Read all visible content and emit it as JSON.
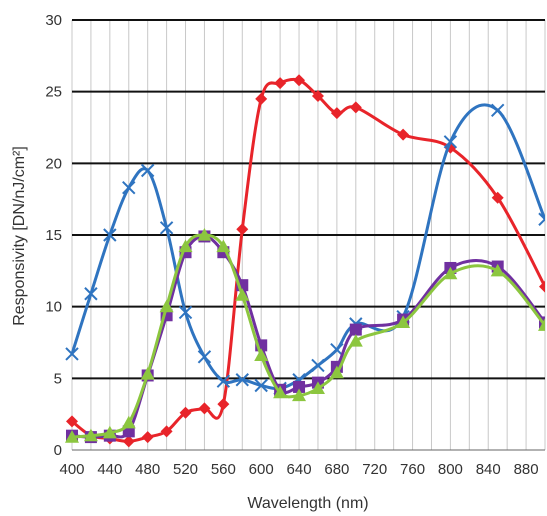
{
  "chart_data": {
    "type": "line",
    "xlabel": "Wavelength (nm)",
    "ylabel": "Responsivity [DN/nJ/cm²]",
    "xlim": [
      400,
      900
    ],
    "ylim": [
      0,
      30
    ],
    "x_ticks": [
      400,
      440,
      480,
      520,
      560,
      600,
      640,
      680,
      720,
      760,
      800,
      840,
      880
    ],
    "x_tick_labels": [
      "400",
      "440",
      "480",
      "520",
      "560",
      "600",
      "640",
      "680",
      "720",
      "760",
      "800",
      "840",
      "880"
    ],
    "y_ticks": [
      0,
      5,
      10,
      15,
      20,
      25,
      30
    ],
    "y_tick_labels": [
      "0",
      "5",
      "10",
      "15",
      "20",
      "25",
      "30"
    ],
    "grid": "on",
    "series": [
      {
        "color": "#e8242a",
        "marker": "diamond",
        "x": [
          400,
          420,
          440,
          460,
          480,
          500,
          520,
          540,
          560,
          580,
          600,
          620,
          640,
          660,
          680,
          700,
          750,
          800,
          850,
          900
        ],
        "y": [
          2.0,
          1.0,
          0.8,
          0.6,
          0.9,
          1.3,
          2.6,
          2.9,
          3.2,
          15.4,
          24.5,
          25.6,
          25.8,
          24.7,
          23.5,
          23.9,
          22.0,
          21.1,
          17.6,
          11.4
        ]
      },
      {
        "color": "#2f74c0",
        "marker": "x",
        "x": [
          400,
          420,
          440,
          460,
          480,
          500,
          520,
          540,
          560,
          580,
          600,
          620,
          640,
          660,
          680,
          700,
          750,
          800,
          850,
          900
        ],
        "y": [
          6.7,
          10.9,
          15.0,
          18.3,
          19.5,
          15.5,
          9.6,
          6.5,
          4.8,
          4.9,
          4.5,
          4.3,
          4.9,
          5.9,
          7.0,
          8.8,
          9.3,
          21.5,
          23.7,
          16.1
        ]
      },
      {
        "color": "#7030a0",
        "marker": "square",
        "x": [
          400,
          420,
          440,
          460,
          480,
          500,
          520,
          540,
          560,
          580,
          600,
          620,
          640,
          660,
          680,
          700,
          750,
          800,
          850,
          900
        ],
        "y": [
          1.0,
          0.9,
          1.0,
          1.3,
          5.2,
          9.4,
          13.8,
          14.9,
          13.8,
          11.5,
          7.3,
          4.2,
          4.4,
          4.7,
          5.8,
          8.4,
          9.1,
          12.7,
          12.8,
          8.9
        ]
      },
      {
        "color": "#8cc63f",
        "marker": "triangle",
        "x": [
          400,
          420,
          440,
          460,
          480,
          500,
          520,
          540,
          560,
          580,
          600,
          620,
          640,
          660,
          680,
          700,
          750,
          800,
          850,
          900
        ],
        "y": [
          0.9,
          1.0,
          1.2,
          1.9,
          5.3,
          10.0,
          14.2,
          15.0,
          14.2,
          10.8,
          6.6,
          4.0,
          3.8,
          4.3,
          5.4,
          7.6,
          8.9,
          12.3,
          12.5,
          8.7
        ]
      }
    ]
  }
}
